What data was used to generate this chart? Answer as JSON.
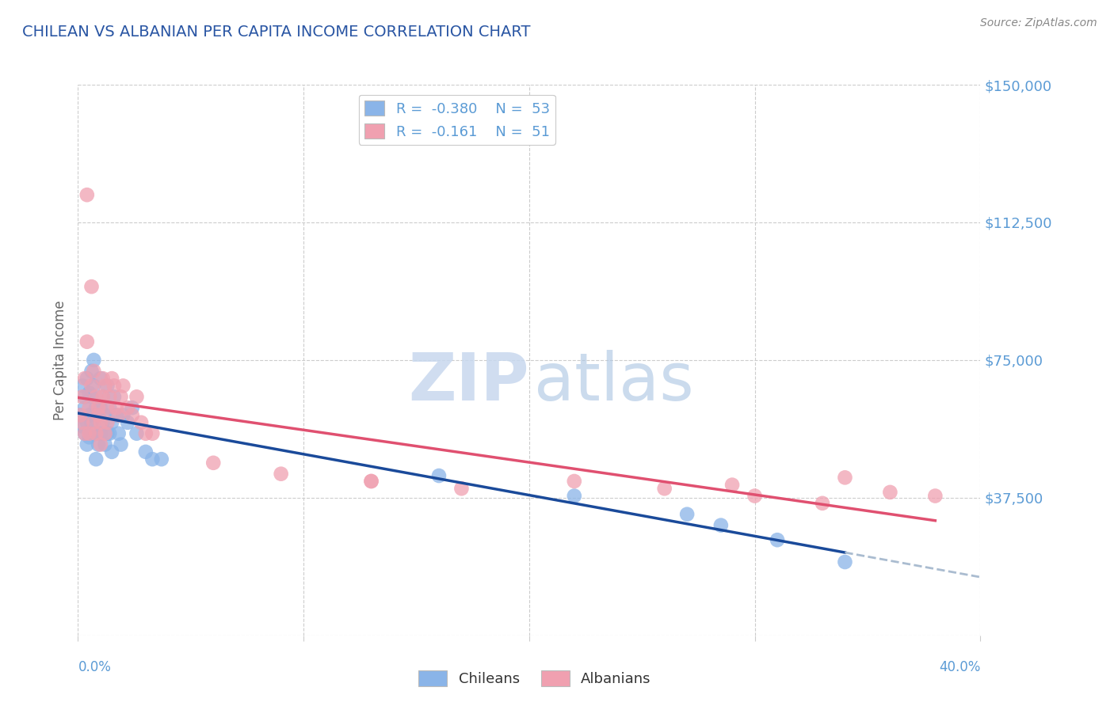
{
  "title": "CHILEAN VS ALBANIAN PER CAPITA INCOME CORRELATION CHART",
  "source": "Source: ZipAtlas.com",
  "ylabel": "Per Capita Income",
  "yticks": [
    0,
    37500,
    75000,
    112500,
    150000
  ],
  "ytick_labels": [
    "",
    "$37,500",
    "$75,000",
    "$112,500",
    "$150,000"
  ],
  "xlim": [
    0.0,
    0.4
  ],
  "ylim": [
    0,
    150000
  ],
  "title_color": "#2955a3",
  "axis_color": "#5b9bd5",
  "watermark_zip": "ZIP",
  "watermark_atlas": "atlas",
  "legend_label1": "Chileans",
  "legend_label2": "Albanians",
  "chilean_color": "#8ab4e8",
  "albanian_color": "#f0a0b0",
  "chilean_line_color": "#1a4a9a",
  "albanian_line_color": "#e05070",
  "dashed_line_color": "#aabcd0",
  "chilean_x": [
    0.001,
    0.002,
    0.002,
    0.003,
    0.003,
    0.003,
    0.004,
    0.004,
    0.004,
    0.005,
    0.005,
    0.005,
    0.006,
    0.006,
    0.006,
    0.007,
    0.007,
    0.007,
    0.008,
    0.008,
    0.008,
    0.009,
    0.009,
    0.01,
    0.01,
    0.01,
    0.011,
    0.011,
    0.012,
    0.012,
    0.013,
    0.013,
    0.014,
    0.014,
    0.015,
    0.015,
    0.016,
    0.017,
    0.018,
    0.019,
    0.02,
    0.022,
    0.024,
    0.026,
    0.03,
    0.033,
    0.037,
    0.16,
    0.22,
    0.27,
    0.285,
    0.31,
    0.34
  ],
  "chilean_y": [
    60000,
    68000,
    57000,
    65000,
    55000,
    62000,
    70000,
    58000,
    52000,
    66000,
    60000,
    54000,
    72000,
    65000,
    58000,
    75000,
    68000,
    55000,
    62000,
    55000,
    48000,
    60000,
    52000,
    70000,
    62000,
    55000,
    65000,
    58000,
    60000,
    52000,
    68000,
    55000,
    62000,
    55000,
    58000,
    50000,
    65000,
    60000,
    55000,
    52000,
    60000,
    58000,
    62000,
    55000,
    50000,
    48000,
    48000,
    43500,
    38000,
    33000,
    30000,
    26000,
    20000
  ],
  "albanian_x": [
    0.001,
    0.002,
    0.002,
    0.003,
    0.003,
    0.004,
    0.004,
    0.005,
    0.005,
    0.006,
    0.006,
    0.007,
    0.007,
    0.008,
    0.008,
    0.009,
    0.009,
    0.01,
    0.01,
    0.011,
    0.011,
    0.012,
    0.012,
    0.013,
    0.013,
    0.014,
    0.015,
    0.016,
    0.017,
    0.018,
    0.019,
    0.02,
    0.022,
    0.024,
    0.026,
    0.028,
    0.03,
    0.033,
    0.06,
    0.09,
    0.13,
    0.17,
    0.22,
    0.26,
    0.3,
    0.33,
    0.34,
    0.36,
    0.38,
    0.29,
    0.13
  ],
  "albanian_y": [
    60000,
    58000,
    65000,
    70000,
    55000,
    120000,
    80000,
    62000,
    55000,
    95000,
    68000,
    72000,
    58000,
    65000,
    55000,
    62000,
    60000,
    58000,
    52000,
    70000,
    65000,
    68000,
    55000,
    62000,
    58000,
    65000,
    70000,
    68000,
    62000,
    60000,
    65000,
    68000,
    62000,
    60000,
    65000,
    58000,
    55000,
    55000,
    47000,
    44000,
    42000,
    40000,
    42000,
    40000,
    38000,
    36000,
    43000,
    39000,
    38000,
    41000,
    42000
  ],
  "legend_line1": "R =  -0.380    N =  53",
  "legend_line2": "R =  -0.161    N =  51"
}
